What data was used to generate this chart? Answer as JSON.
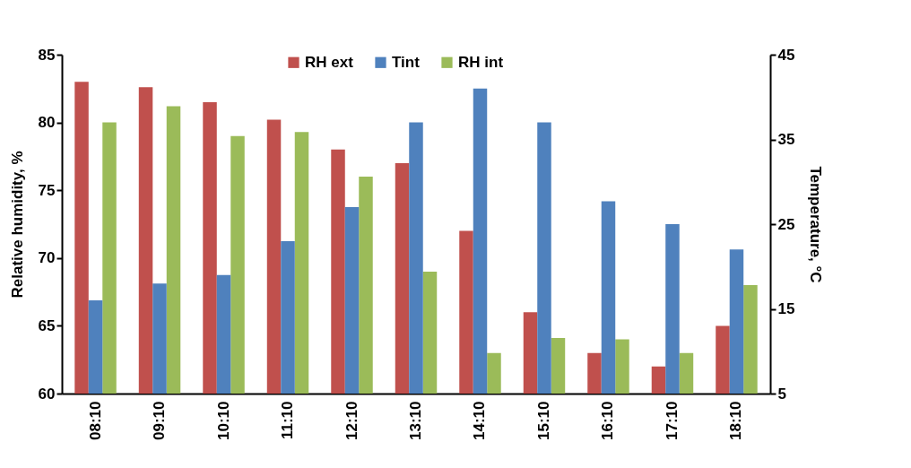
{
  "chart_data": {
    "type": "bar",
    "ylabel": "Relative humidity, %",
    "y2label": "Temperature, °C",
    "categories": [
      "08:10",
      "09:10",
      "10:10",
      "11:10",
      "12:10",
      "13:10",
      "14:10",
      "15:10",
      "16:10",
      "17:10",
      "18:10"
    ],
    "series": [
      {
        "name": "RH ext",
        "color": "#c0504d",
        "values": [
          83,
          82.6,
          81.5,
          80.2,
          78,
          77,
          72,
          66,
          63,
          62,
          65
        ]
      },
      {
        "name": "Tint",
        "color": "#4f81bd",
        "axis": "y2",
        "values": [
          16,
          18,
          19,
          23,
          27,
          37,
          41,
          37,
          27.7,
          25,
          22
        ]
      },
      {
        "name": "RH int",
        "color": "#9bbb59",
        "values": [
          80,
          81.2,
          79,
          79.3,
          76,
          69,
          63,
          64.1,
          64,
          63,
          68
        ]
      }
    ],
    "ylim": [
      60,
      85
    ],
    "yticks": [
      60,
      65,
      70,
      75,
      80,
      85
    ],
    "y2lim": [
      5,
      45
    ],
    "y2ticks": [
      5,
      15,
      25,
      35,
      45
    ],
    "legend": "top"
  }
}
